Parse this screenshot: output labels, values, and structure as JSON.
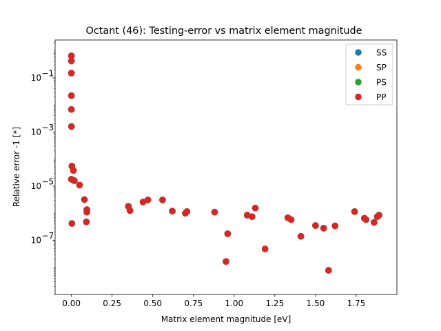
{
  "chart_data": {
    "type": "scatter",
    "title": "Octant (46): Testing-error vs matrix element magnitude",
    "xlabel": "Matrix element magnitude [eV]",
    "ylabel": "Relative error -1 [*]",
    "xlim": [
      -0.1,
      2.0
    ],
    "ylim": [
      1e-09,
      2.5
    ],
    "yscale": "log",
    "grid": false,
    "legend_position": "top-right",
    "x_ticks": [
      0.0,
      0.25,
      0.5,
      0.75,
      1.0,
      1.25,
      1.5,
      1.75
    ],
    "x_tick_labels": [
      "0.00",
      "0.25",
      "0.50",
      "0.75",
      "1.00",
      "1.25",
      "1.50",
      "1.75"
    ],
    "y_ticks": [
      1e-07,
      1e-05,
      0.001,
      0.1
    ],
    "y_tick_labels": [
      "10",
      "10",
      "10",
      "10"
    ],
    "y_tick_exponents": [
      "−7",
      "−5",
      "−3",
      "−1"
    ],
    "series": [
      {
        "name": "SS",
        "color": "#1f77b4",
        "points": [
          [
            0.0,
            0.65
          ],
          [
            0.0,
            0.42
          ],
          [
            0.0,
            0.15
          ],
          [
            0.0,
            0.022
          ],
          [
            0.0,
            0.0068
          ],
          [
            0.0,
            0.0016
          ],
          [
            0.003,
            5.5e-05
          ],
          [
            0.012,
            3.8e-05
          ],
          [
            0.0,
            1.8e-05
          ],
          [
            0.018,
            1.6e-05
          ],
          [
            0.05,
            1.1e-05
          ],
          [
            0.08,
            3.2e-06
          ],
          [
            0.095,
            1.35e-06
          ],
          [
            0.095,
            1.1e-06
          ],
          [
            0.092,
            4.8e-07
          ],
          [
            0.003,
            4.2e-07
          ],
          [
            0.35,
            1.8e-06
          ],
          [
            0.36,
            1.25e-06
          ],
          [
            0.44,
            2.6e-06
          ],
          [
            0.47,
            3.1e-06
          ],
          [
            0.56,
            3.1e-06
          ],
          [
            0.62,
            1.2e-06
          ],
          [
            0.7,
            1e-06
          ],
          [
            0.71,
            1.15e-06
          ],
          [
            0.88,
            1.1e-06
          ],
          [
            0.96,
            1.75e-07
          ],
          [
            0.95,
            1.65e-08
          ],
          [
            1.08,
            8.5e-07
          ],
          [
            1.11,
            7.5e-07
          ],
          [
            1.13,
            1.55e-06
          ],
          [
            1.19,
            4.8e-08
          ],
          [
            1.33,
            6.8e-07
          ],
          [
            1.35,
            5.8e-07
          ],
          [
            1.41,
            1.4e-07
          ],
          [
            1.5,
            3.5e-07
          ],
          [
            1.55,
            2.8e-07
          ],
          [
            1.58,
            7.8e-09
          ],
          [
            1.62,
            3.4e-07
          ],
          [
            1.74,
            1.15e-06
          ],
          [
            1.8,
            6.5e-07
          ],
          [
            1.81,
            5.8e-07
          ],
          [
            1.86,
            4.6e-07
          ],
          [
            1.88,
            7.5e-07
          ],
          [
            1.89,
            8.5e-07
          ]
        ]
      },
      {
        "name": "SP",
        "color": "#ff7f0e",
        "points": [
          [
            0.0,
            0.65
          ],
          [
            0.0,
            0.42
          ],
          [
            0.0,
            0.15
          ],
          [
            0.0,
            0.022
          ],
          [
            0.0,
            0.0068
          ],
          [
            0.0,
            0.0016
          ],
          [
            0.003,
            5.5e-05
          ],
          [
            0.012,
            3.8e-05
          ],
          [
            0.0,
            1.8e-05
          ],
          [
            0.018,
            1.6e-05
          ],
          [
            0.05,
            1.1e-05
          ],
          [
            0.08,
            3.2e-06
          ],
          [
            0.095,
            1.35e-06
          ],
          [
            0.095,
            1.1e-06
          ],
          [
            0.092,
            4.8e-07
          ],
          [
            0.003,
            4.2e-07
          ],
          [
            0.35,
            1.8e-06
          ],
          [
            0.36,
            1.25e-06
          ],
          [
            0.44,
            2.6e-06
          ],
          [
            0.47,
            3.1e-06
          ],
          [
            0.56,
            3.1e-06
          ],
          [
            0.62,
            1.2e-06
          ],
          [
            0.7,
            1e-06
          ],
          [
            0.71,
            1.15e-06
          ],
          [
            0.88,
            1.1e-06
          ],
          [
            0.96,
            1.75e-07
          ],
          [
            0.95,
            1.65e-08
          ],
          [
            1.08,
            8.5e-07
          ],
          [
            1.11,
            7.5e-07
          ],
          [
            1.13,
            1.55e-06
          ],
          [
            1.19,
            4.8e-08
          ],
          [
            1.33,
            6.8e-07
          ],
          [
            1.35,
            5.8e-07
          ],
          [
            1.41,
            1.4e-07
          ],
          [
            1.5,
            3.5e-07
          ],
          [
            1.55,
            2.8e-07
          ],
          [
            1.58,
            7.8e-09
          ],
          [
            1.62,
            3.4e-07
          ],
          [
            1.74,
            1.15e-06
          ],
          [
            1.8,
            6.5e-07
          ],
          [
            1.81,
            5.8e-07
          ],
          [
            1.86,
            4.6e-07
          ],
          [
            1.88,
            7.5e-07
          ],
          [
            1.89,
            8.5e-07
          ]
        ]
      },
      {
        "name": "PS",
        "color": "#2ca02c",
        "points": [
          [
            0.0,
            0.65
          ],
          [
            0.0,
            0.42
          ],
          [
            0.0,
            0.15
          ],
          [
            0.0,
            0.022
          ],
          [
            0.0,
            0.0068
          ],
          [
            0.0,
            0.0016
          ],
          [
            0.003,
            5.5e-05
          ],
          [
            0.012,
            3.8e-05
          ],
          [
            0.0,
            1.8e-05
          ],
          [
            0.018,
            1.6e-05
          ],
          [
            0.05,
            1.1e-05
          ],
          [
            0.08,
            3.2e-06
          ],
          [
            0.095,
            1.35e-06
          ],
          [
            0.095,
            1.1e-06
          ],
          [
            0.092,
            4.8e-07
          ],
          [
            0.003,
            4.2e-07
          ],
          [
            0.35,
            1.8e-06
          ],
          [
            0.36,
            1.25e-06
          ],
          [
            0.44,
            2.6e-06
          ],
          [
            0.47,
            3.1e-06
          ],
          [
            0.56,
            3.1e-06
          ],
          [
            0.62,
            1.2e-06
          ],
          [
            0.7,
            1e-06
          ],
          [
            0.71,
            1.15e-06
          ],
          [
            0.88,
            1.1e-06
          ],
          [
            0.96,
            1.75e-07
          ],
          [
            0.95,
            1.65e-08
          ],
          [
            1.08,
            8.5e-07
          ],
          [
            1.11,
            7.5e-07
          ],
          [
            1.13,
            1.55e-06
          ],
          [
            1.19,
            4.8e-08
          ],
          [
            1.33,
            6.8e-07
          ],
          [
            1.35,
            5.8e-07
          ],
          [
            1.41,
            1.4e-07
          ],
          [
            1.5,
            3.5e-07
          ],
          [
            1.55,
            2.8e-07
          ],
          [
            1.58,
            7.8e-09
          ],
          [
            1.62,
            3.4e-07
          ],
          [
            1.74,
            1.15e-06
          ],
          [
            1.8,
            6.5e-07
          ],
          [
            1.81,
            5.8e-07
          ],
          [
            1.86,
            4.6e-07
          ],
          [
            1.88,
            7.5e-07
          ],
          [
            1.89,
            8.5e-07
          ]
        ]
      },
      {
        "name": "PP",
        "color": "#d62728",
        "points": [
          [
            0.0,
            0.65
          ],
          [
            0.0,
            0.42
          ],
          [
            0.0,
            0.15
          ],
          [
            0.0,
            0.022
          ],
          [
            0.0,
            0.0068
          ],
          [
            0.0,
            0.0016
          ],
          [
            0.003,
            5.5e-05
          ],
          [
            0.012,
            3.8e-05
          ],
          [
            0.0,
            1.8e-05
          ],
          [
            0.018,
            1.6e-05
          ],
          [
            0.05,
            1.1e-05
          ],
          [
            0.08,
            3.2e-06
          ],
          [
            0.095,
            1.35e-06
          ],
          [
            0.095,
            1.1e-06
          ],
          [
            0.092,
            4.8e-07
          ],
          [
            0.003,
            4.2e-07
          ],
          [
            0.35,
            1.8e-06
          ],
          [
            0.36,
            1.25e-06
          ],
          [
            0.44,
            2.6e-06
          ],
          [
            0.47,
            3.1e-06
          ],
          [
            0.56,
            3.1e-06
          ],
          [
            0.62,
            1.2e-06
          ],
          [
            0.7,
            1e-06
          ],
          [
            0.71,
            1.15e-06
          ],
          [
            0.88,
            1.1e-06
          ],
          [
            0.96,
            1.75e-07
          ],
          [
            0.95,
            1.65e-08
          ],
          [
            1.08,
            8.5e-07
          ],
          [
            1.11,
            7.5e-07
          ],
          [
            1.13,
            1.55e-06
          ],
          [
            1.19,
            4.8e-08
          ],
          [
            1.33,
            6.8e-07
          ],
          [
            1.35,
            5.8e-07
          ],
          [
            1.41,
            1.4e-07
          ],
          [
            1.5,
            3.5e-07
          ],
          [
            1.55,
            2.8e-07
          ],
          [
            1.58,
            7.8e-09
          ],
          [
            1.62,
            3.4e-07
          ],
          [
            1.74,
            1.15e-06
          ],
          [
            1.8,
            6.5e-07
          ],
          [
            1.81,
            5.8e-07
          ],
          [
            1.86,
            4.6e-07
          ],
          [
            1.88,
            7.5e-07
          ],
          [
            1.89,
            8.5e-07
          ]
        ]
      }
    ]
  }
}
